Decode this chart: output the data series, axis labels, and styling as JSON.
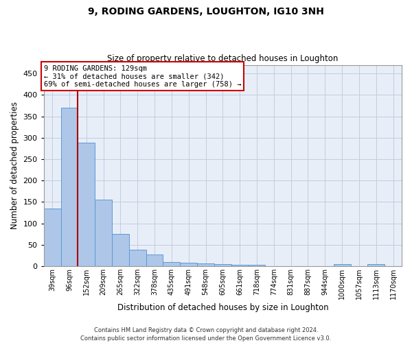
{
  "title1": "9, RODING GARDENS, LOUGHTON, IG10 3NH",
  "title2": "Size of property relative to detached houses in Loughton",
  "xlabel": "Distribution of detached houses by size in Loughton",
  "ylabel": "Number of detached properties",
  "categories": [
    "39sqm",
    "96sqm",
    "152sqm",
    "209sqm",
    "265sqm",
    "322sqm",
    "378sqm",
    "435sqm",
    "491sqm",
    "548sqm",
    "605sqm",
    "661sqm",
    "718sqm",
    "774sqm",
    "831sqm",
    "887sqm",
    "944sqm",
    "1000sqm",
    "1057sqm",
    "1113sqm",
    "1170sqm"
  ],
  "values": [
    135,
    370,
    288,
    155,
    75,
    38,
    27,
    10,
    8,
    6,
    5,
    4,
    3,
    0,
    0,
    0,
    0,
    5,
    0,
    5,
    0
  ],
  "bar_color": "#aec6e8",
  "bar_edge_color": "#5b9bd5",
  "grid_color": "#c0cce0",
  "bg_color": "#e8eef8",
  "vline_color": "#aa0000",
  "annotation_text": "9 RODING GARDENS: 129sqm\n← 31% of detached houses are smaller (342)\n69% of semi-detached houses are larger (758) →",
  "annotation_box_color": "#ffffff",
  "annotation_border_color": "#cc0000",
  "footer": "Contains HM Land Registry data © Crown copyright and database right 2024.\nContains public sector information licensed under the Open Government Licence v3.0.",
  "ylim": [
    0,
    470
  ],
  "yticks": [
    0,
    50,
    100,
    150,
    200,
    250,
    300,
    350,
    400,
    450
  ]
}
